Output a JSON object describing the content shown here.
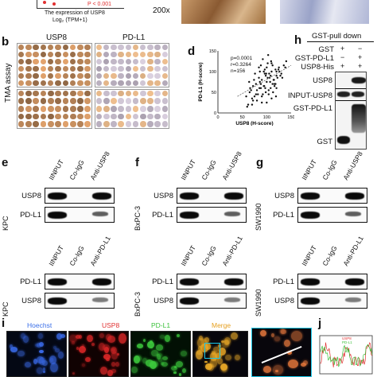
{
  "panel_a": {
    "p_value": "P < 0.001",
    "caption_line1": "The expression of USP8",
    "caption_line2": "Log₂ (TPM+1)"
  },
  "panel_top_right": {
    "magnification": "200x"
  },
  "panel_b": {
    "letter": "b",
    "col1": "USP8",
    "col2": "PD-L1",
    "side_label": "TMA assay"
  },
  "panel_d": {
    "letter": "d",
    "stats": [
      "p=0.0001",
      "r=0.3264",
      "n=156"
    ],
    "chart_data": {
      "type": "scatter",
      "xlabel": "USP8 (H-score)",
      "ylabel": "PD-L1 (H-score)",
      "xticks": [
        "0",
        "50",
        "100",
        "150"
      ],
      "yticks": [
        "0",
        "50",
        "100",
        "150"
      ],
      "xlim": [
        0,
        150
      ],
      "ylim": [
        0,
        150
      ],
      "points_x": [
        62,
        70,
        75,
        80,
        85,
        88,
        90,
        92,
        95,
        98,
        100,
        102,
        105,
        108,
        110,
        112,
        115,
        118,
        120,
        125,
        60,
        65,
        72,
        78,
        84,
        90,
        96,
        100,
        104,
        110,
        116,
        120,
        130,
        135,
        140,
        58,
        66,
        74,
        82,
        86,
        94,
        98,
        106,
        112,
        118,
        124,
        128,
        70,
        80,
        90,
        100,
        110,
        88,
        92,
        97,
        103,
        107,
        113,
        76,
        84,
        94,
        102,
        108,
        114,
        120,
        126,
        132,
        64,
        72,
        86,
        96,
        104,
        116,
        122,
        138,
        68,
        78,
        88,
        99,
        109,
        119
      ],
      "points_y": [
        20,
        35,
        40,
        55,
        60,
        70,
        80,
        45,
        65,
        90,
        75,
        85,
        95,
        60,
        100,
        70,
        80,
        105,
        90,
        110,
        15,
        50,
        30,
        70,
        85,
        25,
        95,
        110,
        55,
        120,
        65,
        100,
        95,
        115,
        125,
        40,
        60,
        80,
        45,
        75,
        100,
        50,
        85,
        115,
        70,
        105,
        90,
        20,
        30,
        40,
        25,
        35,
        115,
        130,
        60,
        140,
        75,
        50,
        95,
        110,
        65,
        120,
        90,
        80,
        60,
        100,
        85,
        75,
        65,
        100,
        105,
        45,
        70,
        85,
        110,
        55,
        45,
        60,
        95,
        125,
        40
      ],
      "trend": [
        [
          40,
          40
        ],
        [
          150,
          115
        ]
      ]
    }
  },
  "panel_h": {
    "letter": "h",
    "title": "GST-pull down",
    "conditions": [
      {
        "name": "GST",
        "lane1": "+",
        "lane2": "−"
      },
      {
        "name": "GST-PD-L1",
        "lane1": "−",
        "lane2": "+"
      },
      {
        "name": "USP8-His",
        "lane1": "+",
        "lane2": "+"
      }
    ],
    "rows": [
      "USP8",
      "INPUT-USP8",
      "GST-PD-L1",
      "GST"
    ]
  },
  "panel_e": {
    "letter": "e",
    "cell_line": "KPC"
  },
  "panel_f": {
    "letter": "f",
    "cell_line": "BxPC-3"
  },
  "panel_g": {
    "letter": "g",
    "cell_line": "SW1990"
  },
  "ip_top": {
    "lanes": [
      "IINPUT",
      "Co-IgG",
      "Anti-USP8"
    ],
    "rows": [
      "USP8",
      "PD-L1"
    ]
  },
  "ip_bottom": {
    "lanes": [
      "IINPUT",
      "Co-IgG",
      "Anti-PD-L1"
    ],
    "rows": [
      "PD-L1",
      "USP8"
    ]
  },
  "panel_i": {
    "letter": "i",
    "channels": [
      "Hoechst",
      "USP8",
      "PD-L1",
      "Merge"
    ],
    "colors": {
      "hoechst": "#3b6fe8",
      "usp8": "#e03030",
      "pdl1": "#3cc13c",
      "merge": "#e6a020"
    }
  },
  "panel_j": {
    "letter": "j",
    "legend": [
      "USP8",
      "PD-L1"
    ]
  }
}
